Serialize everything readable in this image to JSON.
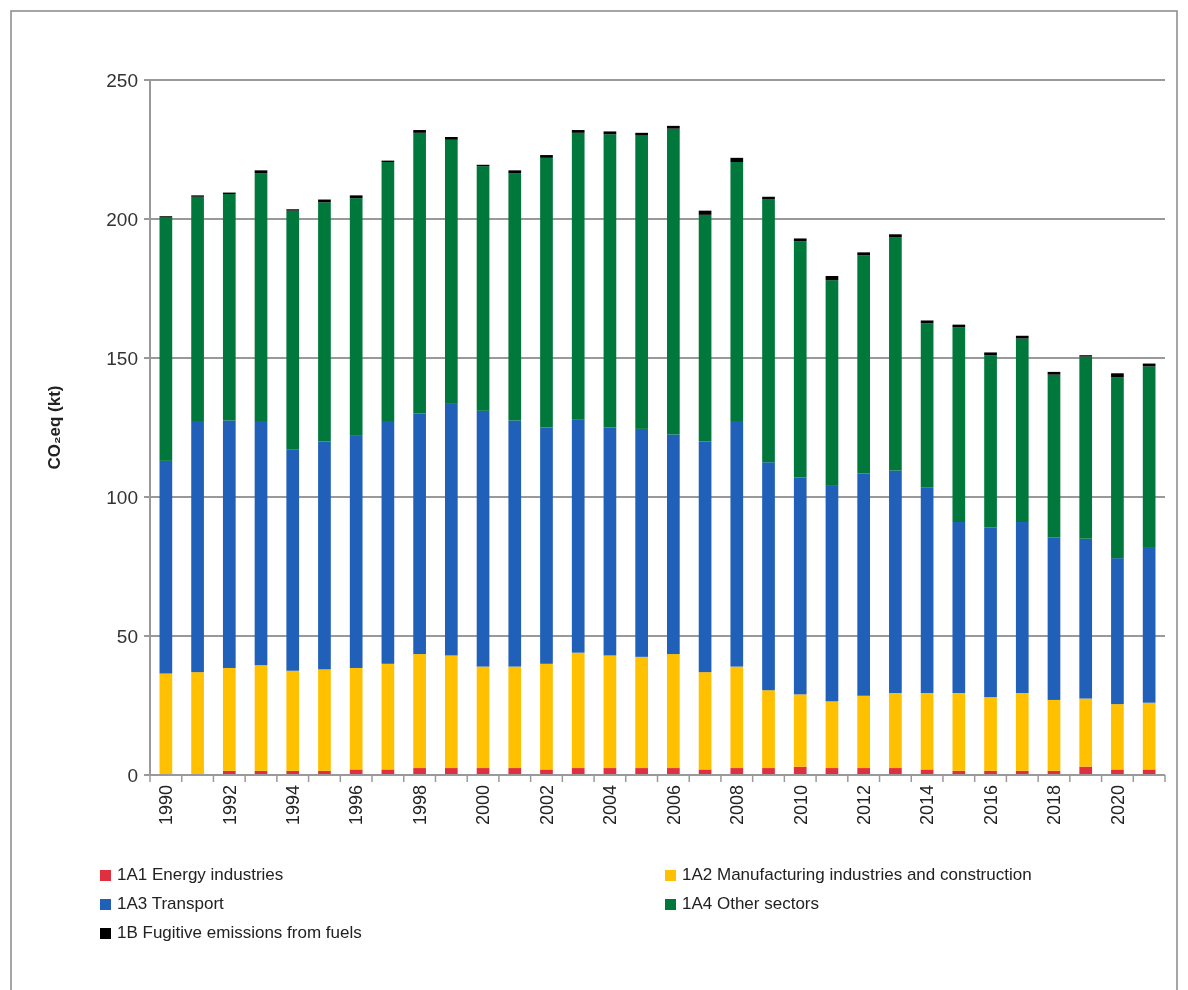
{
  "chart_data": {
    "type": "bar",
    "stacked": true,
    "ylabel": "CO₂eq (kt)",
    "categories": [
      "1990",
      null,
      "1992",
      null,
      "1994",
      null,
      "1996",
      null,
      "1998",
      null,
      "2000",
      null,
      "2002",
      null,
      "2004",
      null,
      "2006",
      null,
      "2008",
      null,
      "2010",
      null,
      "2012",
      null,
      "2014",
      null,
      "2016",
      null,
      "2018",
      null,
      "2020",
      null
    ],
    "series": [
      {
        "name": "1A1 Energy industries",
        "color": "#e03040",
        "values": [
          0,
          0,
          1.5,
          1.5,
          1.5,
          1.5,
          2,
          2,
          2.5,
          2.5,
          2.5,
          2.5,
          2,
          2.5,
          2.5,
          2.5,
          2.5,
          2,
          2.5,
          2.5,
          3,
          2.5,
          2.5,
          2.5,
          2,
          1.5,
          1.5,
          1.5,
          1.5,
          3,
          2,
          2
        ]
      },
      {
        "name": "1A2 Manufacturing industries and construction",
        "color": "#ffc000",
        "values": [
          36.5,
          37,
          37,
          38,
          36,
          36.5,
          36.5,
          38,
          41,
          40.5,
          36.5,
          36.5,
          38,
          41.5,
          40.5,
          40,
          41,
          35,
          36.5,
          28,
          26,
          24,
          26,
          27,
          27.5,
          28,
          26.5,
          28,
          25.5,
          24.5,
          23.5,
          24
        ]
      },
      {
        "name": "1A3 Transport",
        "color": "#2060b8",
        "values": [
          76.5,
          90,
          89,
          87.5,
          79.5,
          82,
          83.5,
          87,
          86.5,
          90.5,
          92,
          88.5,
          85,
          84,
          82,
          82,
          79,
          83,
          88,
          82,
          78,
          77.5,
          80,
          80,
          74,
          61.5,
          61,
          61.5,
          58.5,
          57.5,
          52.5,
          56
        ]
      },
      {
        "name": "1A4 Other sectors",
        "color": "#00783c",
        "values": [
          87.5,
          81,
          81.5,
          89.5,
          86,
          86,
          85.5,
          93.5,
          101,
          95,
          88,
          89,
          97,
          103,
          105.5,
          105.5,
          110,
          81.5,
          93.5,
          94.5,
          85,
          74,
          78.5,
          84,
          59,
          70,
          62,
          66,
          58.5,
          65.5,
          65,
          65
        ]
      },
      {
        "name": "1B Fugitive emissions from fuels",
        "color": "#000000",
        "values": [
          0.5,
          0.5,
          0.5,
          1,
          0.5,
          1,
          1,
          0.5,
          1,
          1,
          0.5,
          1,
          1,
          1,
          1,
          1,
          1,
          1.5,
          1.5,
          1,
          1,
          1.5,
          1,
          1,
          1,
          1,
          1,
          1,
          1,
          0.5,
          1.5,
          1
        ]
      }
    ],
    "ylim": [
      0,
      250
    ],
    "yticks": [
      0,
      50,
      100,
      150,
      200,
      250
    ],
    "grid": "y",
    "legend": "bottom"
  }
}
